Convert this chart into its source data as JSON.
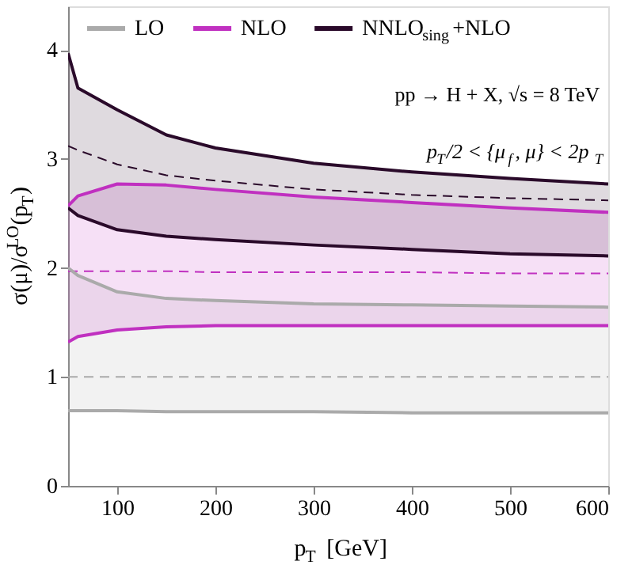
{
  "chart_data": {
    "type": "line",
    "xlabel": "p$_{T}$ [GeV]",
    "ylabel": "σ(μ)/σ$^{LO}$(p$_{T}$)",
    "x": [
      50,
      60,
      100,
      150,
      200,
      300,
      400,
      500,
      600
    ],
    "xlim": [
      50,
      600
    ],
    "xticks": [
      100,
      200,
      300,
      400,
      500,
      600
    ],
    "ylim": [
      0,
      4.4
    ],
    "yticks": [
      0,
      1,
      2,
      3,
      4
    ],
    "grid": false,
    "legend": "top",
    "line_style": "dashed",
    "marker": "none",
    "series": [
      {
        "name": "LO",
        "color": "#aaaaaa",
        "values": [
          1.0,
          1.0,
          1.0,
          1.0,
          1.0,
          1.0,
          1.0,
          1.0,
          1.0
        ],
        "lower": [
          0.69,
          0.69,
          0.69,
          0.68,
          0.68,
          0.68,
          0.67,
          0.67,
          0.67
        ],
        "upper": [
          2.0,
          1.93,
          1.78,
          1.72,
          1.7,
          1.67,
          1.66,
          1.65,
          1.64
        ]
      },
      {
        "name": "NLO",
        "color": "#c030c0",
        "values": [
          1.97,
          1.97,
          1.97,
          1.97,
          1.96,
          1.96,
          1.96,
          1.95,
          1.95
        ],
        "lower": [
          1.32,
          1.37,
          1.43,
          1.46,
          1.47,
          1.47,
          1.47,
          1.47,
          1.47
        ],
        "upper": [
          2.57,
          2.66,
          2.77,
          2.76,
          2.72,
          2.65,
          2.6,
          2.55,
          2.51
        ]
      },
      {
        "name": "NNLO$_{sing}$+NLO",
        "color": "#2a0a2a",
        "values": [
          3.12,
          3.08,
          2.95,
          2.85,
          2.8,
          2.72,
          2.67,
          2.64,
          2.62
        ],
        "lower": [
          2.55,
          2.48,
          2.35,
          2.29,
          2.26,
          2.21,
          2.17,
          2.13,
          2.11
        ],
        "upper": [
          3.97,
          3.65,
          3.45,
          3.22,
          3.1,
          2.96,
          2.88,
          2.82,
          2.77
        ]
      },
      {
        "color": "#aaaaaa",
        "line_style": "solid",
        "values": [
          0.69,
          0.69,
          0.69,
          0.68,
          0.68,
          0.68,
          0.67,
          0.67,
          0.67
        ]
      },
      {
        "color": "#aaaaaa",
        "line_style": "solid",
        "values": [
          2.0,
          1.93,
          1.78,
          1.72,
          1.7,
          1.67,
          1.66,
          1.65,
          1.64
        ]
      },
      {
        "color": "#c030c0",
        "line_style": "solid",
        "values": [
          1.32,
          1.37,
          1.43,
          1.46,
          1.47,
          1.47,
          1.47,
          1.47,
          1.47
        ]
      },
      {
        "color": "#c030c0",
        "line_style": "solid",
        "values": [
          2.57,
          2.66,
          2.77,
          2.76,
          2.72,
          2.65,
          2.6,
          2.55,
          2.51
        ]
      },
      {
        "color": "#2a0a2a",
        "line_style": "solid",
        "values": [
          2.55,
          2.48,
          2.35,
          2.29,
          2.26,
          2.21,
          2.17,
          2.13,
          2.11
        ]
      },
      {
        "color": "#2a0a2a",
        "line_style": "solid",
        "values": [
          3.97,
          3.65,
          3.45,
          3.22,
          3.1,
          2.96,
          2.88,
          2.82,
          2.77
        ]
      }
    ],
    "annotations": [
      "pp → H + X, √s = 8 TeV",
      "p$_{T}$/2 < {μ$_{f}$, μ} < 2p$_{T}$"
    ]
  }
}
